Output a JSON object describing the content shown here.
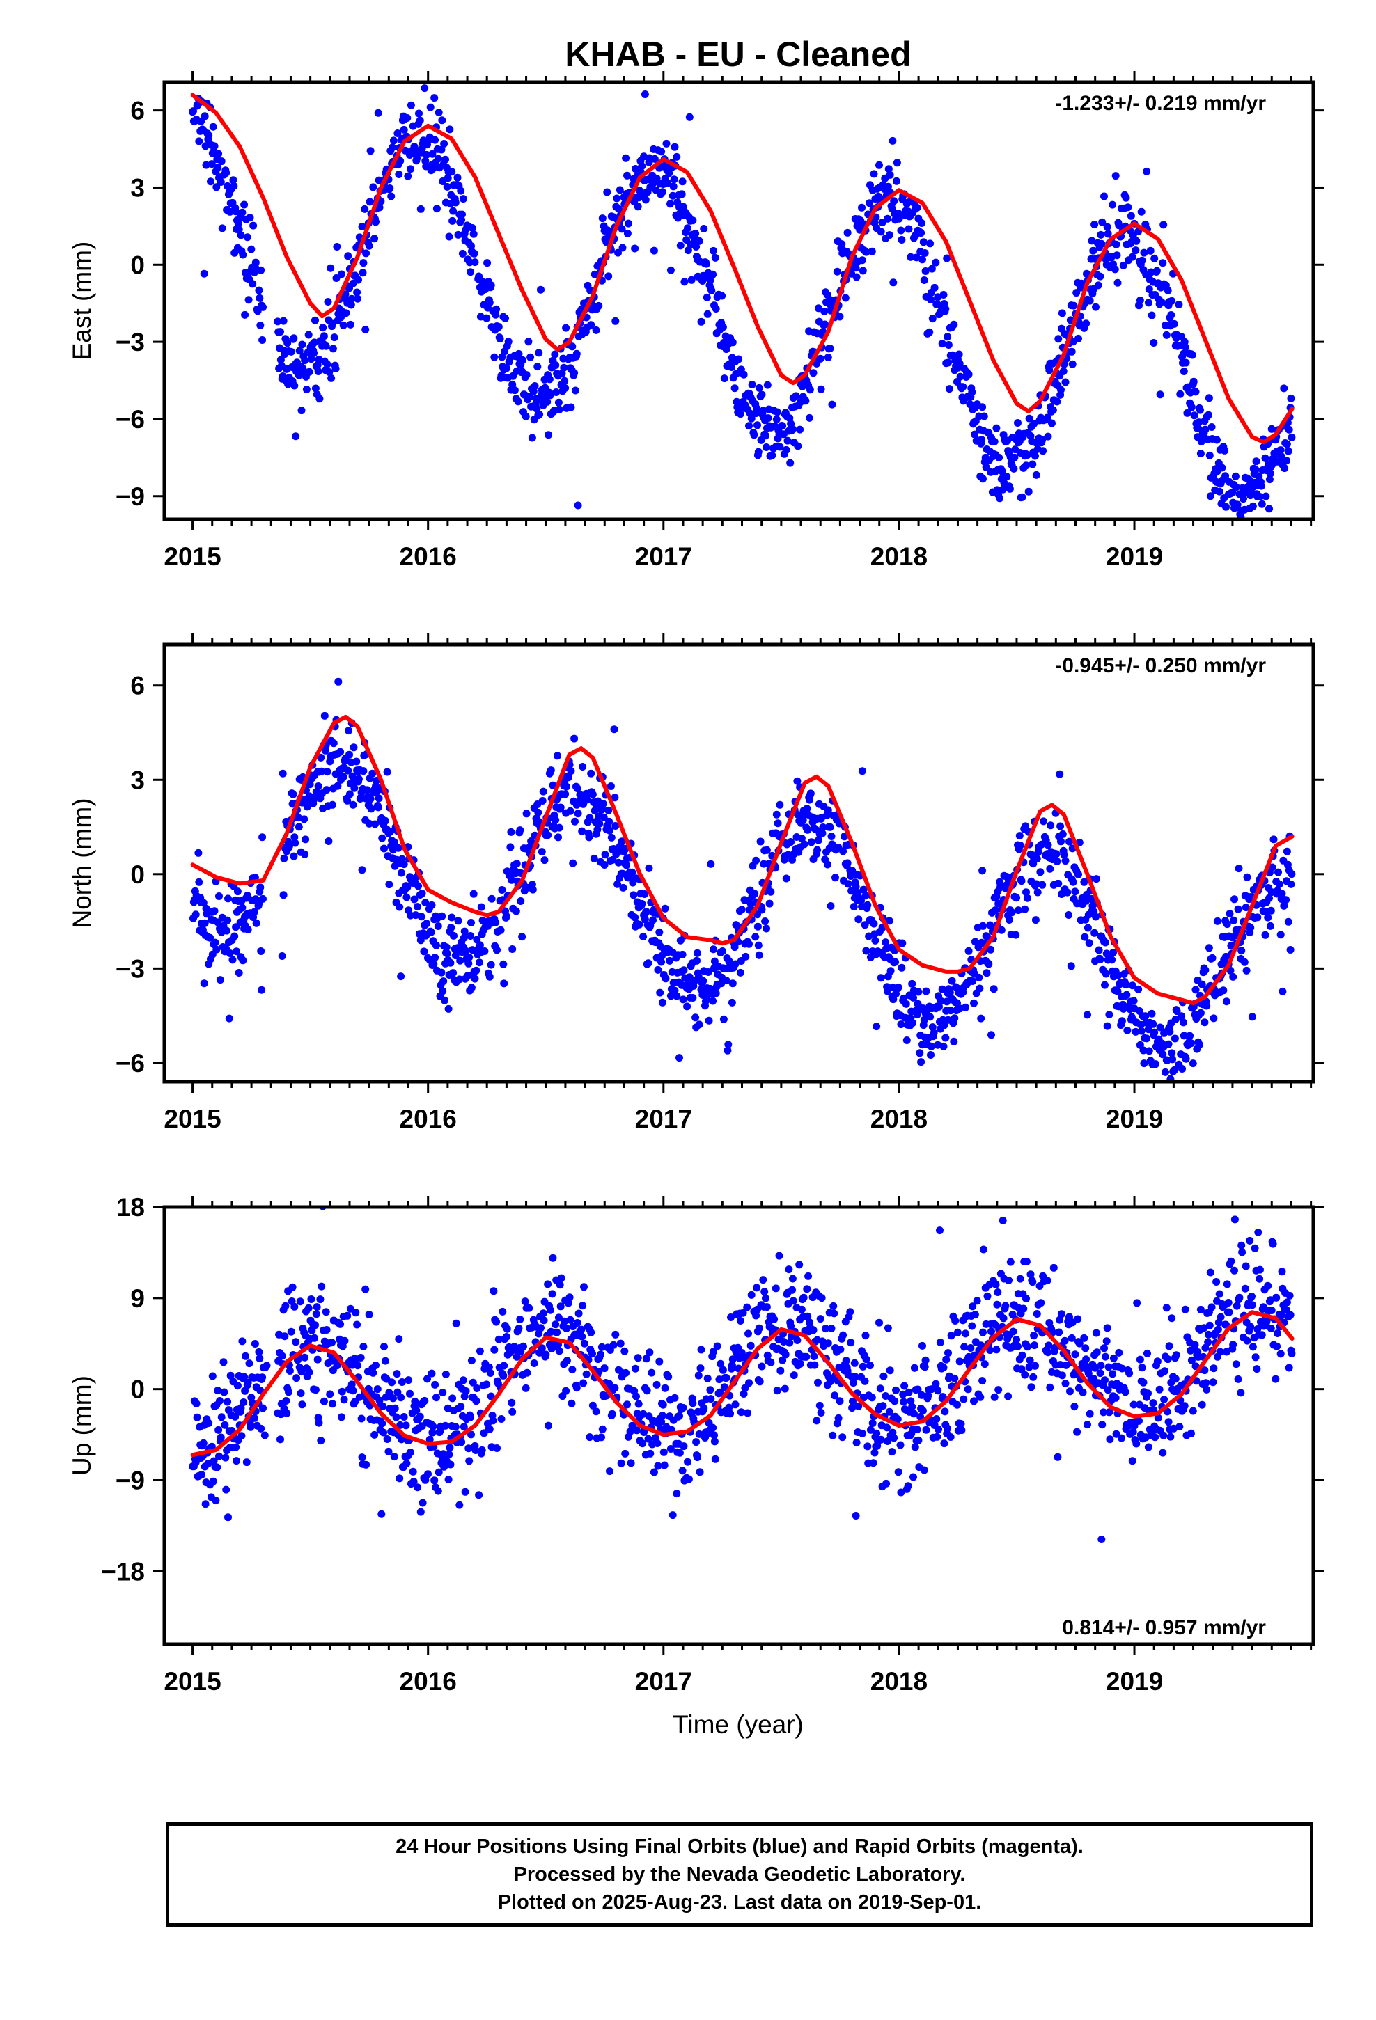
{
  "title": "KHAB  - EU - Cleaned",
  "xlabel": "Time (year)",
  "footer": {
    "line1": "24 Hour Positions Using Final Orbits (blue) and Rapid Orbits (magenta).",
    "line2": "Processed by the Nevada Geodetic Laboratory.",
    "line3": "Plotted on 2025-Aug-23. Last data on 2019-Sep-01."
  },
  "colors": {
    "points": "#0000ff",
    "fit": "#ff0000",
    "axis": "#000000"
  },
  "chart_data": [
    {
      "type": "scatter",
      "name": "east",
      "ylabel": "East (mm)",
      "rate": "-1.233+/- 0.219 mm/yr",
      "rate_position": "top-right",
      "xlim": [
        2014.88,
        2019.76
      ],
      "ylim": [
        -9.9,
        7.1
      ],
      "xticks": [
        2015,
        2016,
        2017,
        2018,
        2019
      ],
      "yticks": [
        6,
        3,
        0,
        -3,
        -6,
        -9
      ],
      "ytick_labels": [
        "6",
        "3",
        "0",
        "−3",
        "−6",
        "−9"
      ],
      "fit": {
        "x": [
          2015.0,
          2015.1,
          2015.2,
          2015.3,
          2015.4,
          2015.5,
          2015.55,
          2015.6,
          2015.7,
          2015.8,
          2015.9,
          2016.0,
          2016.1,
          2016.2,
          2016.3,
          2016.4,
          2016.5,
          2016.55,
          2016.6,
          2016.7,
          2016.8,
          2016.9,
          2017.0,
          2017.1,
          2017.2,
          2017.3,
          2017.4,
          2017.5,
          2017.55,
          2017.6,
          2017.7,
          2017.8,
          2017.9,
          2018.0,
          2018.1,
          2018.2,
          2018.3,
          2018.4,
          2018.5,
          2018.55,
          2018.6,
          2018.7,
          2018.8,
          2018.9,
          2019.0,
          2019.1,
          2019.2,
          2019.3,
          2019.4,
          2019.5,
          2019.55,
          2019.6,
          2019.67
        ],
        "y": [
          6.6,
          5.9,
          4.6,
          2.6,
          0.3,
          -1.5,
          -2.0,
          -1.7,
          0.3,
          3.0,
          4.8,
          5.4,
          4.9,
          3.4,
          1.2,
          -1.0,
          -2.9,
          -3.3,
          -3.0,
          -1.2,
          1.5,
          3.4,
          4.1,
          3.6,
          2.1,
          -0.1,
          -2.4,
          -4.3,
          -4.6,
          -4.3,
          -2.6,
          0.3,
          2.2,
          2.9,
          2.4,
          0.9,
          -1.4,
          -3.7,
          -5.4,
          -5.7,
          -5.3,
          -3.5,
          -0.7,
          1.0,
          1.6,
          1.0,
          -0.6,
          -2.9,
          -5.2,
          -6.7,
          -6.9,
          -6.6,
          -5.6
        ]
      },
      "scatter": {
        "amp": 4.8,
        "phase_year": 2015.96,
        "trend": -1.233,
        "offset": 1.3,
        "noise": 0.75,
        "outlier_frac": 0.06,
        "outlier_scale": 3.0,
        "gaps": [
          [
            2015.3,
            2015.36
          ]
        ],
        "end": 2019.67
      }
    },
    {
      "type": "scatter",
      "name": "north",
      "ylabel": "North (mm)",
      "rate": "-0.945+/- 0.250 mm/yr",
      "rate_position": "top-right",
      "xlim": [
        2014.88,
        2019.76
      ],
      "ylim": [
        -6.6,
        7.3
      ],
      "xticks": [
        2015,
        2016,
        2017,
        2018,
        2019
      ],
      "yticks": [
        6,
        3,
        0,
        -3,
        -6
      ],
      "ytick_labels": [
        "6",
        "3",
        "0",
        "−3",
        "−6"
      ],
      "fit": {
        "x": [
          2015.0,
          2015.1,
          2015.2,
          2015.3,
          2015.4,
          2015.5,
          2015.6,
          2015.65,
          2015.7,
          2015.8,
          2015.9,
          2016.0,
          2016.1,
          2016.2,
          2016.25,
          2016.3,
          2016.4,
          2016.5,
          2016.6,
          2016.65,
          2016.7,
          2016.8,
          2016.9,
          2017.0,
          2017.1,
          2017.2,
          2017.25,
          2017.3,
          2017.4,
          2017.5,
          2017.6,
          2017.65,
          2017.7,
          2017.8,
          2017.9,
          2018.0,
          2018.1,
          2018.2,
          2018.25,
          2018.3,
          2018.4,
          2018.5,
          2018.6,
          2018.65,
          2018.7,
          2018.8,
          2018.9,
          2019.0,
          2019.1,
          2019.2,
          2019.25,
          2019.3,
          2019.4,
          2019.5,
          2019.6,
          2019.67
        ],
        "y": [
          0.3,
          -0.1,
          -0.3,
          -0.2,
          1.3,
          3.4,
          4.8,
          5.0,
          4.7,
          3.0,
          0.8,
          -0.5,
          -0.9,
          -1.2,
          -1.3,
          -1.2,
          -0.2,
          1.8,
          3.8,
          4.0,
          3.7,
          1.9,
          0.0,
          -1.4,
          -2.0,
          -2.1,
          -2.2,
          -2.1,
          -1.0,
          1.0,
          2.9,
          3.1,
          2.8,
          1.0,
          -1.0,
          -2.4,
          -2.9,
          -3.1,
          -3.1,
          -3.0,
          -2.0,
          0.1,
          2.0,
          2.2,
          1.9,
          0.0,
          -2.0,
          -3.3,
          -3.8,
          -4.0,
          -4.1,
          -3.9,
          -2.9,
          -1.0,
          0.9,
          1.2
        ]
      },
      "scatter": {
        "amp": 2.9,
        "phase_year": 2015.63,
        "trend": -0.945,
        "offset": 1.2,
        "noise": 0.7,
        "outlier_frac": 0.05,
        "outlier_scale": 3.0,
        "gaps": [
          [
            2015.3,
            2015.38
          ]
        ],
        "end": 2019.67
      }
    },
    {
      "type": "scatter",
      "name": "up",
      "ylabel": "Up (mm)",
      "rate": "0.814+/- 0.957 mm/yr",
      "rate_position": "bottom-right",
      "xlim": [
        2014.88,
        2019.76
      ],
      "ylim": [
        -25.2,
        18.0
      ],
      "xticks": [
        2015,
        2016,
        2017,
        2018,
        2019
      ],
      "yticks": [
        18,
        9,
        0,
        -9,
        -18
      ],
      "ytick_labels": [
        "18",
        "9",
        "0",
        "−9",
        "−18"
      ],
      "fit": {
        "x": [
          2015.0,
          2015.1,
          2015.2,
          2015.3,
          2015.4,
          2015.5,
          2015.6,
          2015.7,
          2015.8,
          2015.9,
          2016.0,
          2016.1,
          2016.2,
          2016.3,
          2016.4,
          2016.5,
          2016.6,
          2016.7,
          2016.8,
          2016.9,
          2017.0,
          2017.1,
          2017.2,
          2017.3,
          2017.4,
          2017.5,
          2017.6,
          2017.7,
          2017.8,
          2017.9,
          2018.0,
          2018.1,
          2018.2,
          2018.3,
          2018.4,
          2018.5,
          2018.6,
          2018.7,
          2018.8,
          2018.9,
          2019.0,
          2019.1,
          2019.2,
          2019.3,
          2019.4,
          2019.5,
          2019.6,
          2019.67
        ],
        "y": [
          -6.5,
          -6.0,
          -4.0,
          -0.5,
          2.7,
          4.3,
          3.6,
          0.7,
          -2.4,
          -4.6,
          -5.4,
          -5.2,
          -3.6,
          -0.5,
          3.0,
          5.1,
          4.6,
          1.8,
          -1.3,
          -3.6,
          -4.5,
          -4.2,
          -2.6,
          0.7,
          4.0,
          5.9,
          5.3,
          2.6,
          -0.4,
          -2.5,
          -3.6,
          -3.2,
          -1.2,
          2.0,
          5.1,
          6.9,
          6.3,
          3.8,
          0.6,
          -1.8,
          -2.7,
          -2.4,
          -0.5,
          2.8,
          6.0,
          7.6,
          7.0,
          5.0
        ]
      },
      "scatter": {
        "amp": 5.0,
        "phase_year": 2015.52,
        "trend": 0.814,
        "offset": -0.7,
        "noise": 3.2,
        "outlier_frac": 0.05,
        "outlier_scale": 2.2,
        "gaps": [
          [
            2015.32,
            2015.36
          ]
        ],
        "end": 2019.67
      }
    }
  ]
}
